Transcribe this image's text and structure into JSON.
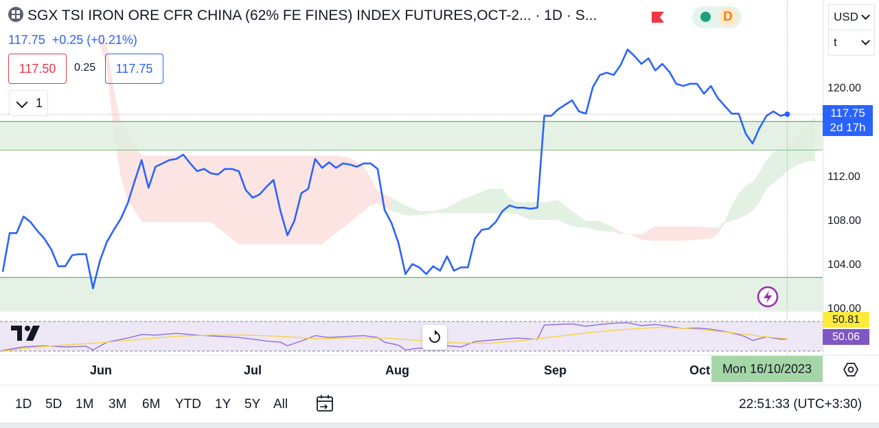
{
  "header": {
    "title": "SGX TSI IRON ORE CFR CHINA (62% FE FINES) INDEX FUTURES,OCT-2...",
    "interval": "· 1D · S...",
    "status_letter": "D"
  },
  "quote": {
    "last": "117.75",
    "change": "+0.25",
    "change_pct": "(+0.21%)",
    "bid": "117.50",
    "spread": "0.25",
    "ask": "117.75"
  },
  "indicators_toggle": {
    "count": "1"
  },
  "currency_select": {
    "value": "USD"
  },
  "unit_select": {
    "value": "t"
  },
  "price_axis": {
    "labels": [
      "120.00",
      "112.00",
      "108.00",
      "104.00",
      "100.00"
    ],
    "current_price": "117.75",
    "countdown": "2d 17h"
  },
  "rsi": {
    "ma_value": "50.81",
    "value": "50.06"
  },
  "time_axis": {
    "months": [
      "Jun",
      "Jul",
      "Aug",
      "Sep",
      "Oct"
    ],
    "crosshair_date": "Mon 16/10/2023"
  },
  "ranges": [
    "1D",
    "5D",
    "1M",
    "3M",
    "6M",
    "YTD",
    "1Y",
    "5Y",
    "All"
  ],
  "clock": "22:51:33 (UTC+3:30)",
  "colors": {
    "price_line": "#2962ff",
    "cloud_bull": "#e3f1e3",
    "cloud_bear": "#fce4e2",
    "zone_fill": "#dfefdf",
    "zone_border": "#7cc07f",
    "rsi_line": "#8e6bd6",
    "rsi_ma": "#f5d442",
    "rsi_band": "#ede7f6"
  },
  "chart_data": {
    "type": "line",
    "ylim": [
      100,
      124
    ],
    "price": [
      [
        0,
        103.5
      ],
      [
        1,
        107.0
      ],
      [
        2,
        107.0
      ],
      [
        3,
        108.5
      ],
      [
        4,
        108.0
      ],
      [
        5,
        107.2
      ],
      [
        6,
        106.5
      ],
      [
        7,
        105.5
      ],
      [
        8,
        104.0
      ],
      [
        9,
        104.0
      ],
      [
        10,
        105.0
      ],
      [
        11,
        105.1
      ],
      [
        12,
        105.1
      ],
      [
        13,
        102.0
      ],
      [
        14,
        104.5
      ],
      [
        15,
        106.2
      ],
      [
        16,
        107.3
      ],
      [
        17,
        108.3
      ],
      [
        18,
        109.7
      ],
      [
        19,
        111.7
      ],
      [
        20,
        113.6
      ],
      [
        21,
        111.1
      ],
      [
        22,
        113.0
      ],
      [
        23,
        113.3
      ],
      [
        24,
        113.6
      ],
      [
        25,
        113.7
      ],
      [
        26,
        114.1
      ],
      [
        27,
        113.3
      ],
      [
        28,
        112.6
      ],
      [
        29,
        112.8
      ],
      [
        30,
        112.4
      ],
      [
        31,
        112.3
      ],
      [
        32,
        112.8
      ],
      [
        33,
        112.8
      ],
      [
        34,
        112.6
      ],
      [
        35,
        110.9
      ],
      [
        36,
        110.2
      ],
      [
        37,
        110.5
      ],
      [
        38,
        111.2
      ],
      [
        39,
        111.8
      ],
      [
        40,
        109.0
      ],
      [
        41,
        106.8
      ],
      [
        42,
        108.1
      ],
      [
        43,
        110.6
      ],
      [
        44,
        111.0
      ],
      [
        45,
        113.7
      ],
      [
        46,
        112.9
      ],
      [
        47,
        113.4
      ],
      [
        48,
        112.9
      ],
      [
        49,
        113.3
      ],
      [
        50,
        113.2
      ],
      [
        51,
        113.0
      ],
      [
        52,
        113.3
      ],
      [
        53,
        113.3
      ],
      [
        54,
        112.8
      ],
      [
        55,
        109.1
      ],
      [
        56,
        107.9
      ],
      [
        57,
        106.1
      ],
      [
        58,
        103.3
      ],
      [
        59,
        104.2
      ],
      [
        60,
        103.9
      ],
      [
        61,
        103.3
      ],
      [
        62,
        104.0
      ],
      [
        63,
        103.6
      ],
      [
        64,
        104.9
      ],
      [
        65,
        103.6
      ],
      [
        66,
        103.9
      ],
      [
        67,
        103.9
      ],
      [
        68,
        106.5
      ],
      [
        69,
        107.3
      ],
      [
        70,
        107.4
      ],
      [
        71,
        108.0
      ],
      [
        72,
        109.0
      ],
      [
        73,
        109.5
      ],
      [
        74,
        109.3
      ],
      [
        75,
        109.3
      ],
      [
        76,
        109.2
      ],
      [
        77,
        109.3
      ],
      [
        78,
        117.6
      ],
      [
        79,
        117.6
      ],
      [
        80,
        118.2
      ],
      [
        81,
        118.6
      ],
      [
        82,
        119.0
      ],
      [
        83,
        118.0
      ],
      [
        84,
        117.8
      ],
      [
        85,
        120.2
      ],
      [
        86,
        121.3
      ],
      [
        87,
        121.5
      ],
      [
        88,
        121.3
      ],
      [
        89,
        122.2
      ],
      [
        90,
        123.6
      ],
      [
        91,
        123.0
      ],
      [
        92,
        122.3
      ],
      [
        93,
        122.8
      ],
      [
        94,
        121.7
      ],
      [
        95,
        122.3
      ],
      [
        96,
        121.6
      ],
      [
        97,
        120.5
      ],
      [
        98,
        120.3
      ],
      [
        99,
        120.5
      ],
      [
        100,
        120.5
      ],
      [
        101,
        119.6
      ],
      [
        102,
        120.3
      ],
      [
        103,
        119.2
      ],
      [
        104,
        118.5
      ],
      [
        105,
        117.8
      ],
      [
        106,
        117.8
      ],
      [
        107,
        116.0
      ],
      [
        108,
        115.1
      ],
      [
        109,
        116.5
      ],
      [
        110,
        117.6
      ],
      [
        111,
        118.0
      ],
      [
        112,
        117.6
      ],
      [
        113,
        117.75
      ]
    ],
    "cloud": {
      "upper": [
        [
          14,
          125
        ],
        [
          15,
          124
        ],
        [
          16,
          120
        ],
        [
          17,
          117
        ],
        [
          18,
          116
        ],
        [
          19,
          115
        ],
        [
          20,
          114
        ],
        [
          22,
          114
        ],
        [
          24,
          114
        ],
        [
          26,
          114
        ],
        [
          28,
          114
        ],
        [
          30,
          114
        ],
        [
          32,
          114
        ],
        [
          34,
          114
        ],
        [
          36,
          114
        ],
        [
          38,
          114
        ],
        [
          40,
          114
        ],
        [
          42,
          114
        ],
        [
          44,
          114
        ],
        [
          46,
          114
        ],
        [
          48,
          114
        ],
        [
          50,
          113.8
        ],
        [
          52,
          113
        ],
        [
          53,
          112
        ],
        [
          54,
          110.8
        ],
        [
          56,
          110.2
        ],
        [
          58,
          109.5
        ],
        [
          60,
          109.0
        ],
        [
          62,
          109.0
        ],
        [
          64,
          109.3
        ],
        [
          66,
          110.0
        ],
        [
          68,
          110.5
        ],
        [
          70,
          111.0
        ],
        [
          72,
          111.0
        ],
        [
          73,
          110.2
        ],
        [
          74,
          109.8
        ],
        [
          76,
          109.8
        ],
        [
          78,
          109.8
        ],
        [
          80,
          110.0
        ],
        [
          82,
          109.0
        ],
        [
          84,
          108.1
        ],
        [
          86,
          108.1
        ],
        [
          88,
          107.5
        ],
        [
          89,
          107.1
        ],
        [
          90,
          106.9
        ],
        [
          92,
          106.9
        ],
        [
          94,
          107.6
        ],
        [
          96,
          107.6
        ],
        [
          98,
          107.6
        ],
        [
          100,
          107.6
        ],
        [
          102,
          107.5
        ],
        [
          103,
          107.5
        ],
        [
          104,
          108.1
        ],
        [
          105,
          109.5
        ],
        [
          106,
          110.6
        ],
        [
          107,
          111.3
        ],
        [
          108,
          111.6
        ],
        [
          109,
          112.5
        ],
        [
          110,
          113.6
        ],
        [
          111,
          114.3
        ],
        [
          112,
          114.6
        ],
        [
          113,
          114.8
        ],
        [
          114,
          115.4
        ],
        [
          115,
          116.1
        ],
        [
          116,
          117.0
        ],
        [
          117,
          117.5
        ]
      ],
      "lower": [
        [
          14,
          124
        ],
        [
          15,
          122
        ],
        [
          16,
          116
        ],
        [
          17,
          112
        ],
        [
          18,
          110
        ],
        [
          19,
          109
        ],
        [
          20,
          108
        ],
        [
          22,
          108
        ],
        [
          24,
          108
        ],
        [
          26,
          108
        ],
        [
          28,
          108
        ],
        [
          30,
          108
        ],
        [
          32,
          107
        ],
        [
          34,
          106
        ],
        [
          36,
          106
        ],
        [
          38,
          106
        ],
        [
          40,
          106
        ],
        [
          42,
          106
        ],
        [
          44,
          106
        ],
        [
          46,
          106
        ],
        [
          48,
          107
        ],
        [
          50,
          108
        ],
        [
          52,
          109
        ],
        [
          53,
          109.5
        ],
        [
          54,
          109.7
        ],
        [
          56,
          109.0
        ],
        [
          58,
          108.6
        ],
        [
          60,
          108.6
        ],
        [
          62,
          108.8
        ],
        [
          64,
          108.8
        ],
        [
          66,
          108.8
        ],
        [
          68,
          108.8
        ],
        [
          70,
          108.8
        ],
        [
          72,
          108.8
        ],
        [
          73,
          108.8
        ],
        [
          74,
          108.7
        ],
        [
          76,
          108.2
        ],
        [
          78,
          108.2
        ],
        [
          80,
          108.2
        ],
        [
          82,
          107.6
        ],
        [
          84,
          107.5
        ],
        [
          86,
          107.2
        ],
        [
          88,
          107.1
        ],
        [
          89,
          106.9
        ],
        [
          90,
          107.0
        ],
        [
          92,
          106.4
        ],
        [
          94,
          106.3
        ],
        [
          96,
          106.3
        ],
        [
          98,
          106.3
        ],
        [
          100,
          106.4
        ],
        [
          102,
          106.5
        ],
        [
          103,
          106.9
        ],
        [
          104,
          107.9
        ],
        [
          105,
          108.1
        ],
        [
          106,
          108.3
        ],
        [
          107,
          108.6
        ],
        [
          108,
          109.0
        ],
        [
          109,
          109.8
        ],
        [
          110,
          111.0
        ],
        [
          111,
          111.5
        ],
        [
          112,
          112.0
        ],
        [
          113,
          112.6
        ],
        [
          114,
          113.0
        ],
        [
          115,
          113.3
        ],
        [
          116,
          113.5
        ],
        [
          117,
          113.5
        ]
      ],
      "bull_to": 56,
      "bull_from": 103
    },
    "zones": [
      {
        "top": 117.1,
        "bottom": 114.5
      },
      {
        "top": 103.0,
        "bottom": 99.9
      }
    ],
    "rsi_series": {
      "rsi": [
        [
          0,
          31
        ],
        [
          3,
          37
        ],
        [
          6,
          39
        ],
        [
          9,
          37
        ],
        [
          12,
          38
        ],
        [
          13,
          32
        ],
        [
          15,
          45
        ],
        [
          18,
          52
        ],
        [
          20,
          58
        ],
        [
          22,
          57
        ],
        [
          25,
          60
        ],
        [
          28,
          57
        ],
        [
          31,
          55
        ],
        [
          34,
          53
        ],
        [
          36,
          50
        ],
        [
          38,
          47
        ],
        [
          40,
          45
        ],
        [
          41,
          39
        ],
        [
          43,
          47
        ],
        [
          45,
          56
        ],
        [
          47,
          53
        ],
        [
          50,
          55
        ],
        [
          52,
          56
        ],
        [
          54,
          53
        ],
        [
          55,
          45
        ],
        [
          57,
          40
        ],
        [
          58,
          32
        ],
        [
          60,
          35
        ],
        [
          62,
          34
        ],
        [
          64,
          39
        ],
        [
          66,
          37
        ],
        [
          68,
          46
        ],
        [
          70,
          48
        ],
        [
          72,
          50
        ],
        [
          74,
          52
        ],
        [
          77,
          50
        ],
        [
          78,
          74
        ],
        [
          80,
          75
        ],
        [
          82,
          76
        ],
        [
          84,
          72
        ],
        [
          86,
          75
        ],
        [
          88,
          77
        ],
        [
          90,
          78
        ],
        [
          92,
          73
        ],
        [
          94,
          75
        ],
        [
          96,
          72
        ],
        [
          98,
          68
        ],
        [
          100,
          69
        ],
        [
          102,
          67
        ],
        [
          104,
          63
        ],
        [
          106,
          58
        ],
        [
          107,
          54
        ],
        [
          108,
          48
        ],
        [
          110,
          54
        ],
        [
          112,
          50
        ],
        [
          113,
          50.06
        ]
      ],
      "ma": [
        [
          0,
          30
        ],
        [
          5,
          37
        ],
        [
          10,
          41
        ],
        [
          15,
          45
        ],
        [
          20,
          50
        ],
        [
          25,
          55
        ],
        [
          30,
          57
        ],
        [
          35,
          57
        ],
        [
          40,
          55
        ],
        [
          45,
          51
        ],
        [
          50,
          52
        ],
        [
          55,
          52
        ],
        [
          60,
          48
        ],
        [
          65,
          44
        ],
        [
          70,
          43
        ],
        [
          75,
          48
        ],
        [
          80,
          55
        ],
        [
          85,
          62
        ],
        [
          90,
          67
        ],
        [
          95,
          70
        ],
        [
          100,
          67
        ],
        [
          105,
          61
        ],
        [
          110,
          54
        ],
        [
          113,
          50.81
        ]
      ]
    }
  }
}
